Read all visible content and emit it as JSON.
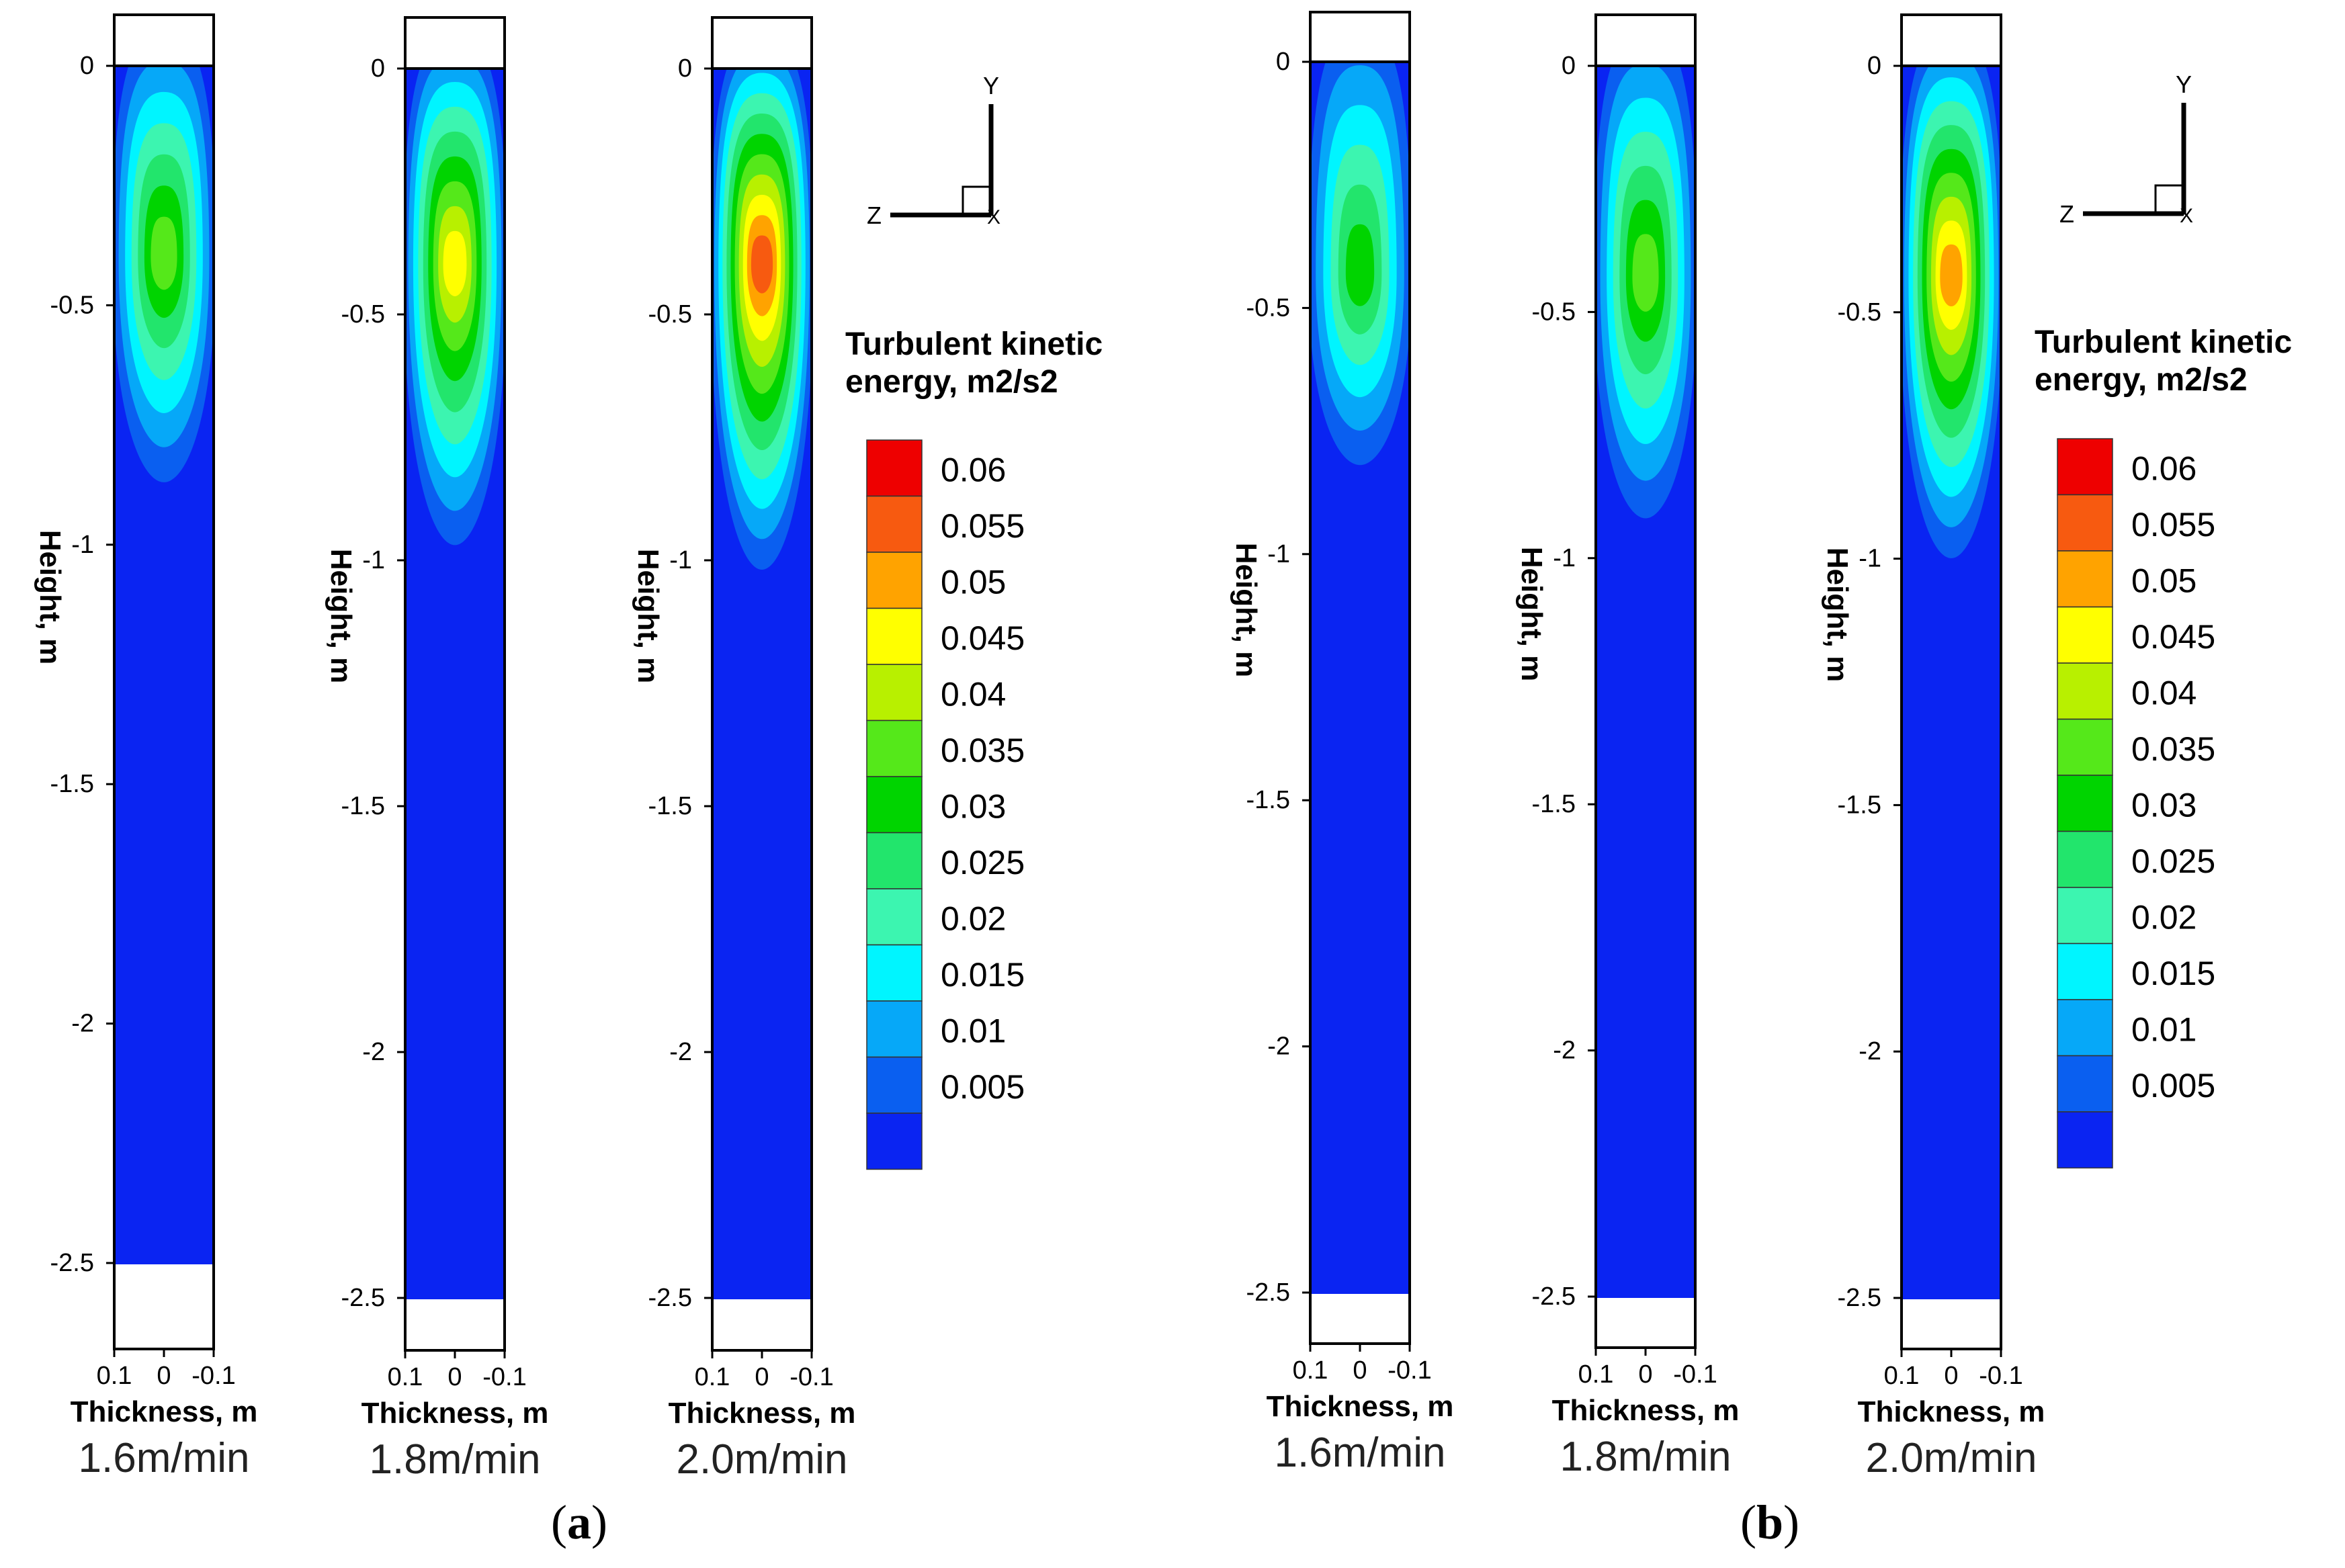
{
  "chart_data": [
    {
      "type": "contour",
      "group": "a",
      "casting_speed": "1.6m/min",
      "xlabel": "Thickness, m",
      "ylabel": "Height, m",
      "xticks": [
        "0.1",
        "0",
        "-0.1"
      ],
      "yticks": [
        "0",
        "-0.5",
        "-1",
        "-1.5",
        "-2",
        "-2.5"
      ],
      "ylim": [
        -2.6,
        0.1
      ],
      "xlim": [
        0.1,
        -0.1
      ],
      "hotspot": {
        "x": 0,
        "y": -0.4,
        "peak_level": 0.035
      },
      "plume_extent": {
        "x_halfwidth": 0.1,
        "y_bottom": -0.85
      }
    },
    {
      "type": "contour",
      "group": "a",
      "casting_speed": "1.8m/min",
      "xlabel": "Thickness, m",
      "ylabel": "Height, m",
      "xticks": [
        "0.1",
        "0",
        "-0.1"
      ],
      "yticks": [
        "0",
        "-0.5",
        "-1",
        "-1.5",
        "-2",
        "-2.5"
      ],
      "ylim": [
        -2.6,
        0.1
      ],
      "xlim": [
        0.1,
        -0.1
      ],
      "hotspot": {
        "x": 0,
        "y": -0.4,
        "peak_level": 0.045
      },
      "plume_extent": {
        "x_halfwidth": 0.1,
        "y_bottom": -0.95
      }
    },
    {
      "type": "contour",
      "group": "a",
      "casting_speed": "2.0m/min",
      "xlabel": "Thickness, m",
      "ylabel": "Height, m",
      "xticks": [
        "0.1",
        "0",
        "-0.1"
      ],
      "yticks": [
        "0",
        "-0.5",
        "-1",
        "-1.5",
        "-2",
        "-2.5"
      ],
      "ylim": [
        -2.6,
        0.1
      ],
      "xlim": [
        0.1,
        -0.1
      ],
      "hotspot": {
        "x": 0,
        "y": -0.4,
        "peak_level": 0.055
      },
      "plume_extent": {
        "x_halfwidth": 0.1,
        "y_bottom": -1.0
      }
    },
    {
      "type": "contour",
      "group": "b",
      "casting_speed": "1.6m/min",
      "xlabel": "Thickness, m",
      "ylabel": "Height, m",
      "xticks": [
        "0.1",
        "0",
        "-0.1"
      ],
      "yticks": [
        "0",
        "-0.5",
        "-1",
        "-1.5",
        "-2",
        "-2.5"
      ],
      "ylim": [
        -2.6,
        0.1
      ],
      "xlim": [
        0.1,
        -0.1
      ],
      "hotspot": {
        "x": 0,
        "y": -0.43,
        "peak_level": 0.03
      },
      "plume_extent": {
        "x_halfwidth": 0.1,
        "y_bottom": -0.8
      }
    },
    {
      "type": "contour",
      "group": "b",
      "casting_speed": "1.8m/min",
      "xlabel": "Thickness, m",
      "ylabel": "Height, m",
      "xticks": [
        "0.1",
        "0",
        "-0.1"
      ],
      "yticks": [
        "0",
        "-0.5",
        "-1",
        "-1.5",
        "-2",
        "-2.5"
      ],
      "ylim": [
        -2.6,
        0.1
      ],
      "xlim": [
        0.1,
        -0.1
      ],
      "hotspot": {
        "x": 0,
        "y": -0.43,
        "peak_level": 0.035
      },
      "plume_extent": {
        "x_halfwidth": 0.1,
        "y_bottom": -0.9
      }
    },
    {
      "type": "contour",
      "group": "b",
      "casting_speed": "2.0m/min",
      "xlabel": "Thickness, m",
      "ylabel": "Height, m",
      "xticks": [
        "0.1",
        "0",
        "-0.1"
      ],
      "yticks": [
        "0",
        "-0.5",
        "-1",
        "-1.5",
        "-2",
        "-2.5"
      ],
      "ylim": [
        -2.6,
        0.1
      ],
      "xlim": [
        0.1,
        -0.1
      ],
      "hotspot": {
        "x": 0,
        "y": -0.43,
        "peak_level": 0.05
      },
      "plume_extent": {
        "x_halfwidth": 0.1,
        "y_bottom": -0.98
      }
    }
  ],
  "legend": {
    "title_line1": "Turbulent kinetic",
    "title_line2": "energy, m2/s2",
    "levels": [
      "0.06",
      "0.055",
      "0.05",
      "0.045",
      "0.04",
      "0.035",
      "0.03",
      "0.025",
      "0.02",
      "0.015",
      "0.01",
      "0.005"
    ],
    "colors": [
      "#ee0000",
      "#f75a10",
      "#ffa300",
      "#ffff00",
      "#b8f000",
      "#55e81a",
      "#00d400",
      "#22e56c",
      "#3cf5b0",
      "#00f5ff",
      "#06a8f8",
      "#0a5ff0",
      "#0a24f2"
    ]
  },
  "axis_triad": {
    "y": "Y",
    "z": "Z",
    "x": "X"
  },
  "captions": {
    "a": "a",
    "b": "b"
  },
  "colors": {
    "background": "#0a24f2",
    "axis": "#000000"
  }
}
